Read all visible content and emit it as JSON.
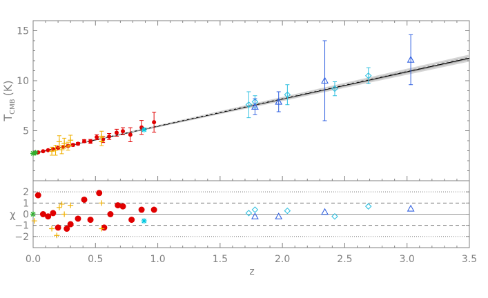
{
  "chart_data": [
    {
      "panel": "top",
      "type": "scatter",
      "ylabel": "T",
      "ylabel_sub": "CMB",
      "ylabel_unit": "(K)",
      "xlim": [
        0.0,
        3.5
      ],
      "ylim": [
        0,
        16
      ],
      "yticks": [
        "5",
        "10",
        "15"
      ],
      "ytick_values": [
        5,
        10,
        15
      ],
      "fit_line": {
        "x": [
          0,
          3.5
        ],
        "y": [
          2.725,
          12.26
        ],
        "band_half_width_at_end": 0.35
      },
      "series": [
        {
          "marker": "dot",
          "color": "#e00000",
          "points": [
            {
              "x": 0.01,
              "y": 2.76,
              "err": 0.05
            },
            {
              "x": 0.04,
              "y": 2.84,
              "err": 0.05
            },
            {
              "x": 0.08,
              "y": 2.95,
              "err": 0.05
            },
            {
              "x": 0.12,
              "y": 3.05,
              "err": 0.06
            },
            {
              "x": 0.16,
              "y": 3.16,
              "err": 0.07
            },
            {
              "x": 0.2,
              "y": 3.29,
              "err": 0.08
            },
            {
              "x": 0.24,
              "y": 3.38,
              "err": 0.09
            },
            {
              "x": 0.28,
              "y": 3.48,
              "err": 0.1
            },
            {
              "x": 0.32,
              "y": 3.58,
              "err": 0.12
            },
            {
              "x": 0.36,
              "y": 3.7,
              "err": 0.12
            },
            {
              "x": 0.41,
              "y": 3.96,
              "err": 0.15
            },
            {
              "x": 0.46,
              "y": 3.93,
              "err": 0.2
            },
            {
              "x": 0.51,
              "y": 4.35,
              "err": 0.25
            },
            {
              "x": 0.56,
              "y": 4.12,
              "err": 0.3
            },
            {
              "x": 0.61,
              "y": 4.42,
              "err": 0.3
            },
            {
              "x": 0.67,
              "y": 4.8,
              "err": 0.35
            },
            {
              "x": 0.72,
              "y": 4.95,
              "err": 0.35
            },
            {
              "x": 0.78,
              "y": 4.6,
              "err": 0.7
            },
            {
              "x": 0.87,
              "y": 5.33,
              "err": 0.7
            },
            {
              "x": 0.97,
              "y": 5.85,
              "err": 1.0
            }
          ]
        },
        {
          "marker": "plus",
          "color": "#f0b000",
          "points": [
            {
              "x": 0.15,
              "y": 2.95,
              "err": 0.4
            },
            {
              "x": 0.18,
              "y": 3.05,
              "err": 0.5
            },
            {
              "x": 0.21,
              "y": 3.9,
              "err": 0.6
            },
            {
              "x": 0.23,
              "y": 3.1,
              "err": 0.4
            },
            {
              "x": 0.25,
              "y": 3.75,
              "err": 0.5
            },
            {
              "x": 0.28,
              "y": 3.45,
              "err": 0.4
            },
            {
              "x": 0.3,
              "y": 4.05,
              "err": 0.5
            },
            {
              "x": 0.55,
              "y": 4.45,
              "err": 0.5
            },
            {
              "x": 0.55,
              "y": 3.9,
              "err": 0.4
            }
          ]
        },
        {
          "marker": "asterisk",
          "color": "#00c8e0",
          "points": [
            {
              "x": 0.89,
              "y": 5.1,
              "err": 0
            }
          ]
        },
        {
          "marker": "asterisk",
          "color": "#30b030",
          "points": [
            {
              "x": 0.0,
              "y": 2.73,
              "err": 0
            },
            {
              "x": 0.02,
              "y": 2.8,
              "err": 0
            }
          ]
        },
        {
          "marker": "diamond",
          "color": "#30c0e0",
          "points": [
            {
              "x": 1.73,
              "y": 7.6,
              "err": 1.3
            },
            {
              "x": 1.78,
              "y": 7.9,
              "err": 0.6
            },
            {
              "x": 2.04,
              "y": 8.6,
              "err": 1.0
            },
            {
              "x": 2.42,
              "y": 9.2,
              "err": 0.7
            },
            {
              "x": 2.69,
              "y": 10.5,
              "err": 0.8
            }
          ]
        },
        {
          "marker": "triangle",
          "color": "#3060e0",
          "points": [
            {
              "x": 1.78,
              "y": 7.4,
              "err": 0.8
            },
            {
              "x": 1.97,
              "y": 7.9,
              "err": 1.0
            },
            {
              "x": 2.34,
              "y": 10.0,
              "err": 4.0
            },
            {
              "x": 3.03,
              "y": 12.1,
              "err": 2.5
            }
          ]
        }
      ]
    },
    {
      "panel": "bottom",
      "type": "scatter",
      "xlabel": "z",
      "ylabel": "χ",
      "xlim": [
        0.0,
        3.5
      ],
      "ylim": [
        -3,
        3
      ],
      "xticks": [
        "0.0",
        "0.5",
        "1.0",
        "1.5",
        "2.0",
        "2.5",
        "3.0",
        "3.5"
      ],
      "xtick_values": [
        0.0,
        0.5,
        1.0,
        1.5,
        2.0,
        2.5,
        3.0,
        3.5
      ],
      "yticks": [
        "2",
        "1",
        "0",
        "−1",
        "−2"
      ],
      "ytick_values": [
        2,
        1,
        0,
        -1,
        -2
      ],
      "reference_lines": [
        {
          "y": 0,
          "style": "solid"
        },
        {
          "y": 1,
          "style": "dashed"
        },
        {
          "y": -1,
          "style": "dashed"
        },
        {
          "y": 2,
          "style": "dotted"
        },
        {
          "y": -2,
          "style": "dotted"
        }
      ],
      "series": [
        {
          "marker": "dot",
          "color": "#e00000",
          "points": [
            {
              "x": 0.04,
              "y": 1.7
            },
            {
              "x": 0.08,
              "y": 0.0
            },
            {
              "x": 0.12,
              "y": -0.2
            },
            {
              "x": 0.16,
              "y": 0.1
            },
            {
              "x": 0.2,
              "y": -1.2
            },
            {
              "x": 0.27,
              "y": -1.3
            },
            {
              "x": 0.3,
              "y": -0.9
            },
            {
              "x": 0.36,
              "y": -0.4
            },
            {
              "x": 0.41,
              "y": 1.3
            },
            {
              "x": 0.46,
              "y": -0.5
            },
            {
              "x": 0.53,
              "y": 1.9
            },
            {
              "x": 0.57,
              "y": -1.2
            },
            {
              "x": 0.62,
              "y": 0.0
            },
            {
              "x": 0.68,
              "y": 0.8
            },
            {
              "x": 0.72,
              "y": 0.7
            },
            {
              "x": 0.79,
              "y": -0.5
            },
            {
              "x": 0.87,
              "y": 0.4
            },
            {
              "x": 0.97,
              "y": 0.4
            }
          ]
        },
        {
          "marker": "plus",
          "color": "#f0b000",
          "points": [
            {
              "x": 0.01,
              "y": -0.6
            },
            {
              "x": 0.15,
              "y": -1.3
            },
            {
              "x": 0.19,
              "y": -1.9
            },
            {
              "x": 0.21,
              "y": 0.6
            },
            {
              "x": 0.23,
              "y": 0.9
            },
            {
              "x": 0.25,
              "y": 0.0
            },
            {
              "x": 0.3,
              "y": 0.8
            },
            {
              "x": 0.55,
              "y": 1.0
            },
            {
              "x": 0.55,
              "y": -1.3
            }
          ]
        },
        {
          "marker": "asterisk",
          "color": "#00c8e0",
          "points": [
            {
              "x": 0.89,
              "y": -0.6
            }
          ]
        },
        {
          "marker": "asterisk",
          "color": "#30b030",
          "points": [
            {
              "x": 0.0,
              "y": 0.0
            }
          ]
        },
        {
          "marker": "diamond",
          "color": "#30c0e0",
          "points": [
            {
              "x": 1.73,
              "y": 0.1
            },
            {
              "x": 1.78,
              "y": 0.4
            },
            {
              "x": 2.04,
              "y": 0.3
            },
            {
              "x": 2.42,
              "y": -0.2
            },
            {
              "x": 2.69,
              "y": 0.7
            }
          ]
        },
        {
          "marker": "triangle",
          "color": "#3060e0",
          "points": [
            {
              "x": 1.78,
              "y": -0.2
            },
            {
              "x": 1.97,
              "y": -0.2
            },
            {
              "x": 2.34,
              "y": 0.2
            },
            {
              "x": 3.03,
              "y": 0.5
            }
          ]
        }
      ]
    }
  ],
  "colors": {
    "axis": "#808080",
    "fit_band_outer": "#d4d4d4",
    "fit_band_inner": "#b0b0b0",
    "fit_line": "#000000"
  }
}
